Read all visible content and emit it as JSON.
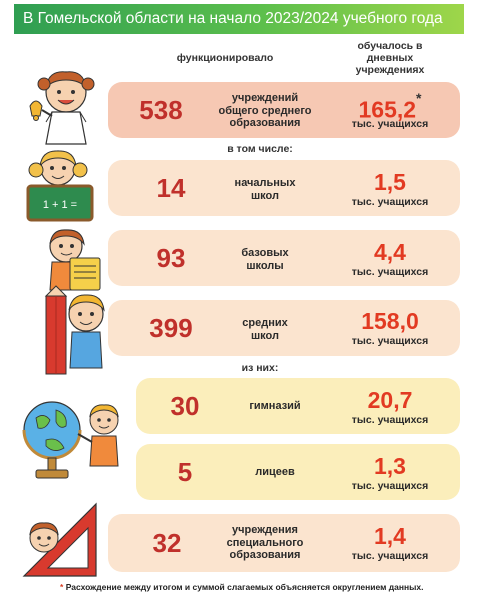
{
  "header": {
    "title": "В Гомельской области на начало 2023/2024 учебного года"
  },
  "columns": {
    "functioning": "функционировало",
    "students_line1": "обучалось в",
    "students_line2": "дневных",
    "students_line3": "учреждениях"
  },
  "separators": {
    "including": "в том числе:",
    "of_them": "из них:"
  },
  "rows": [
    {
      "count": "538",
      "label_1": "учреждений",
      "label_2": "общего среднего",
      "label_3": "образования",
      "value": "165,2",
      "unit": "тыс. учащихся"
    },
    {
      "count": "14",
      "label_1": "начальных",
      "label_2": "школ",
      "value": "1,5",
      "unit": "тыс. учащихся"
    },
    {
      "count": "93",
      "label_1": "базовых",
      "label_2": "школы",
      "value": "4,4",
      "unit": "тыс. учащихся"
    },
    {
      "count": "399",
      "label_1": "средних",
      "label_2": "школ",
      "value": "158,0",
      "unit": "тыс. учащихся"
    },
    {
      "count": "30",
      "label_1": "гимназий",
      "value": "20,7",
      "unit": "тыс. учащихся"
    },
    {
      "count": "5",
      "label_1": "лицеев",
      "value": "1,3",
      "unit": "тыс. учащихся"
    },
    {
      "count": "32",
      "label_1": "учреждения",
      "label_2": "специального",
      "label_3": "образования",
      "value": "1,4",
      "unit": "тыс. учащихся"
    }
  ],
  "asterisk": "*",
  "footnote": "Расхождение между итогом и суммой слагаемых объясняется округлением данных.",
  "colors": {
    "header_start": "#2f9e52",
    "header_end": "#9ed64a",
    "top_row": "#f6c8b3",
    "row": "#fbe4cf",
    "sub_row": "#fbeebb",
    "count": "#c0302b",
    "value": "#e23a22"
  },
  "icons": [
    "girl-with-bell-icon",
    "girl-at-blackboard-icon",
    "girl-with-book-icon",
    "boy-with-pencil-icon",
    "boy-with-globe-icon",
    "boy-with-ruler-icon"
  ]
}
